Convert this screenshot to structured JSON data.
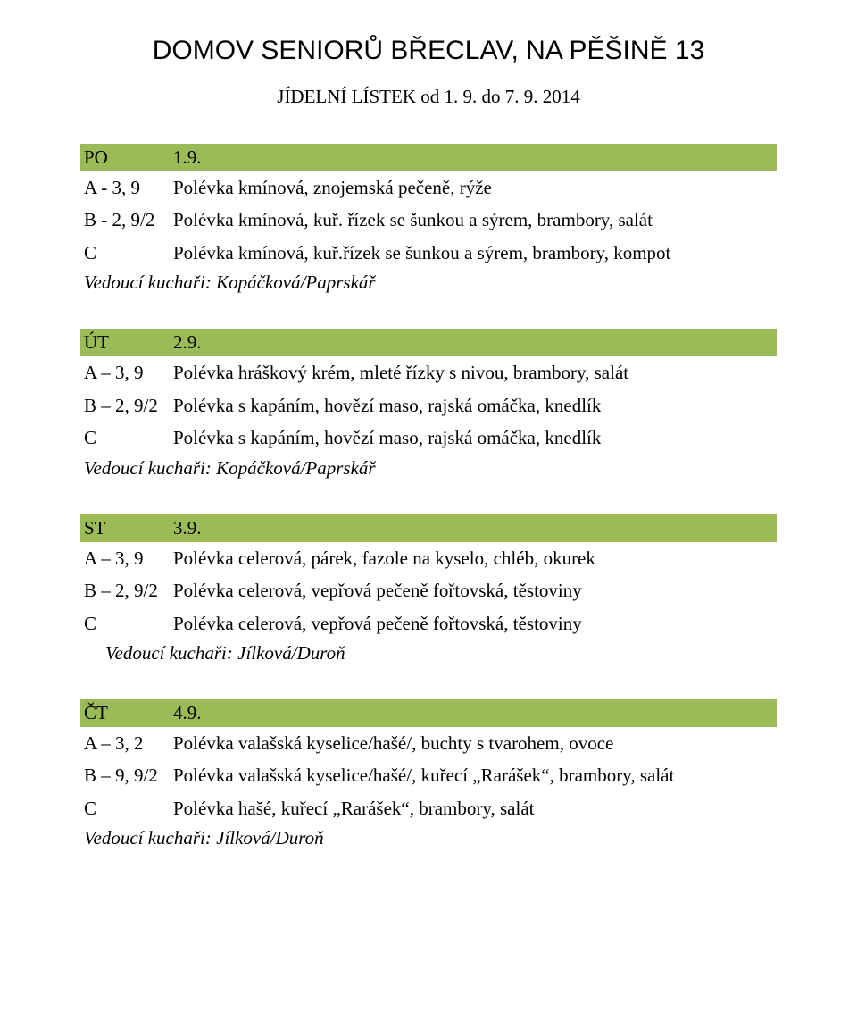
{
  "colors": {
    "row_header_bg": "#9bbb59",
    "text": "#000000",
    "page_bg": "#ffffff"
  },
  "fonts": {
    "title_family": "Comic Sans MS",
    "body_family": "Times New Roman",
    "title_size_pt": 23,
    "body_size_pt": 16
  },
  "header": {
    "title": "DOMOV SENIORŮ BŘECLAV, NA PĚŠINĚ 13",
    "subtitle": "JÍDELNÍ LÍSTEK od 1. 9. do 7. 9. 2014"
  },
  "days": [
    {
      "abbr": "PO",
      "date": "1.9.",
      "rows": [
        {
          "code": "A - 3, 9",
          "text": "Polévka kmínová, znojemská pečeně, rýže"
        },
        {
          "code": "B  - 2, 9/2",
          "text": "Polévka kmínová, kuř. řízek se šunkou a sýrem, brambory, salát"
        },
        {
          "code": "C",
          "text": "Polévka kmínová, kuř.řízek se šunkou a sýrem, brambory, kompot"
        }
      ],
      "chefs": "Vedoucí kuchaři: Kopáčková/Paprskář",
      "chefs_indent": false
    },
    {
      "abbr": "ÚT",
      "date": "2.9.",
      "rows": [
        {
          "code": "A – 3, 9",
          "text": "Polévka hráškový krém, mleté řízky s nivou, brambory, salát"
        },
        {
          "code": "B – 2, 9/2",
          "text": "Polévka s kapáním, hovězí maso, rajská omáčka, knedlík"
        },
        {
          "code": " C",
          "text": "Polévka s kapáním, hovězí maso, rajská omáčka, knedlík"
        }
      ],
      "chefs": "Vedoucí kuchaři: Kopáčková/Paprskář",
      "chefs_indent": false
    },
    {
      "abbr": "ST",
      "date": "3.9.",
      "rows": [
        {
          "code": "A – 3, 9",
          "text": "Polévka celerová, párek, fazole na kyselo, chléb, okurek"
        },
        {
          "code": "B – 2, 9/2",
          "text": "Polévka celerová, vepřová pečeně fořtovská, těstoviny"
        },
        {
          "code": " C",
          "text": "Polévka celerová, vepřová pečeně fořtovská, těstoviny"
        }
      ],
      "chefs": "Vedoucí kuchaři: Jílková/Duroň",
      "chefs_indent": true
    },
    {
      "abbr": "ČT",
      "date": "4.9.",
      "rows": [
        {
          "code": "A – 3, 2",
          "text": "Polévka valašská kyselice/hašé/, buchty s tvarohem, ovoce"
        },
        {
          "code": "B – 9, 9/2",
          "text": "Polévka valašská kyselice/hašé/, kuřecí „Rarášek“, brambory, salát"
        },
        {
          "code": "C",
          "text": "Polévka hašé, kuřecí „Rarášek“, brambory, salát"
        }
      ],
      "chefs": "Vedoucí kuchaři: Jílková/Duroň",
      "chefs_indent": false
    }
  ]
}
